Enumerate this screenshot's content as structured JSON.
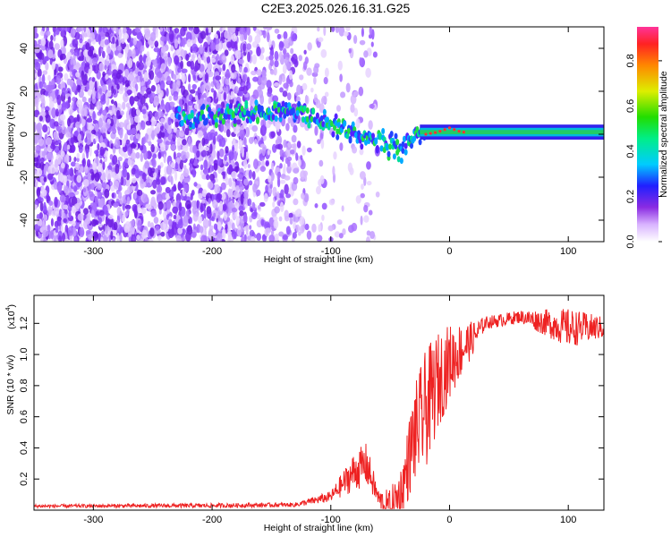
{
  "title": "C2E3.2025.026.16.31.G25",
  "chart_data": [
    {
      "type": "heatmap",
      "xlabel": "Height of straight line (km)",
      "ylabel": "Frequency (Hz)",
      "xlim": [
        -350,
        130
      ],
      "ylim": [
        -50,
        50
      ],
      "x_ticks": [
        -300,
        -200,
        -100,
        0,
        100
      ],
      "y_ticks": [
        -40,
        -20,
        0,
        20,
        40
      ],
      "colorbar": {
        "label": "Normalized spectral amplitude",
        "range": [
          0.0,
          0.95
        ],
        "ticks": [
          0.0,
          0.2,
          0.4,
          0.6,
          0.8
        ]
      },
      "ridge": {
        "x": [
          -230,
          -175,
          -160,
          -140,
          -125,
          -110,
          -95,
          -80,
          -65,
          -50,
          -40,
          -30,
          -20,
          -10,
          0,
          10,
          30,
          60,
          100,
          130
        ],
        "y": [
          8,
          10,
          11,
          11,
          10,
          7,
          3,
          0,
          -2,
          -5,
          -8,
          -1,
          0,
          1,
          3,
          1,
          1,
          1,
          1.5,
          2
        ]
      },
      "noise_regions": [
        {
          "x": [
            -350,
            -170
          ],
          "density": 0.9
        },
        {
          "x": [
            -170,
            -120
          ],
          "density": 0.45
        },
        {
          "x": [
            -120,
            -60
          ],
          "density": 0.12
        }
      ]
    },
    {
      "type": "line",
      "xlabel": "Height of straight line (km)",
      "ylabel": "SNR (10 * v/v)",
      "y_multiplier": "(x10",
      "y_multiplier_exp": "4",
      "xlim": [
        -350,
        130
      ],
      "ylim": [
        0,
        1.38
      ],
      "x_ticks": [
        -300,
        -200,
        -100,
        0,
        100
      ],
      "y_ticks": [
        0.2,
        0.4,
        0.6,
        0.8,
        1.0,
        1.2
      ],
      "color": "#ee2222",
      "envelope": {
        "x": [
          -350,
          -200,
          -130,
          -100,
          -80,
          -70,
          -60,
          -50,
          -40,
          -30,
          -20,
          -10,
          0,
          10,
          20,
          30,
          60,
          100,
          130
        ],
        "base": [
          0.03,
          0.035,
          0.04,
          0.1,
          0.3,
          0.35,
          0.1,
          0.05,
          0.2,
          0.6,
          0.8,
          0.95,
          1.05,
          1.1,
          1.15,
          1.22,
          1.26,
          1.22,
          1.2
        ],
        "spread": [
          0.015,
          0.02,
          0.02,
          0.05,
          0.18,
          0.2,
          0.08,
          0.2,
          0.25,
          0.45,
          0.55,
          0.45,
          0.35,
          0.25,
          0.15,
          0.06,
          0.06,
          0.18,
          0.1
        ]
      }
    }
  ]
}
